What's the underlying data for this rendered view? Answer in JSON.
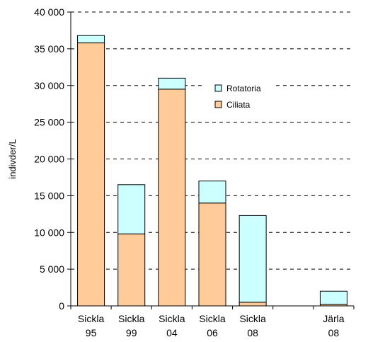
{
  "chart_data": {
    "type": "bar",
    "stacked": true,
    "categories": [
      [
        "Sickla",
        "95"
      ],
      [
        "Sickla",
        "99"
      ],
      [
        "Sickla",
        "04"
      ],
      [
        "Sickla",
        "06"
      ],
      [
        "Sickla",
        "08"
      ],
      [
        "",
        ""
      ],
      [
        "Järla",
        "08"
      ]
    ],
    "series": [
      {
        "name": "Ciliata",
        "color": "#FFCC99",
        "values": [
          35800,
          9800,
          29500,
          14000,
          500,
          0,
          200
        ]
      },
      {
        "name": "Rotatoria",
        "color": "#CCFFFF",
        "values": [
          1000,
          6700,
          1500,
          3000,
          11800,
          0,
          1800
        ]
      }
    ],
    "ylabel": "indivder/L",
    "ylim": [
      0,
      40000
    ],
    "yticks": [
      0,
      5000,
      10000,
      15000,
      20000,
      25000,
      30000,
      35000,
      40000
    ],
    "ytick_labels": [
      "0",
      "5 000",
      "10 000",
      "15 000",
      "20 000",
      "25 000",
      "30 000",
      "35 000",
      "40 000"
    ],
    "grid": "horizontal-dashed",
    "legend": {
      "position": "upper-center",
      "order": [
        "Rotatoria",
        "Ciliata"
      ]
    }
  }
}
